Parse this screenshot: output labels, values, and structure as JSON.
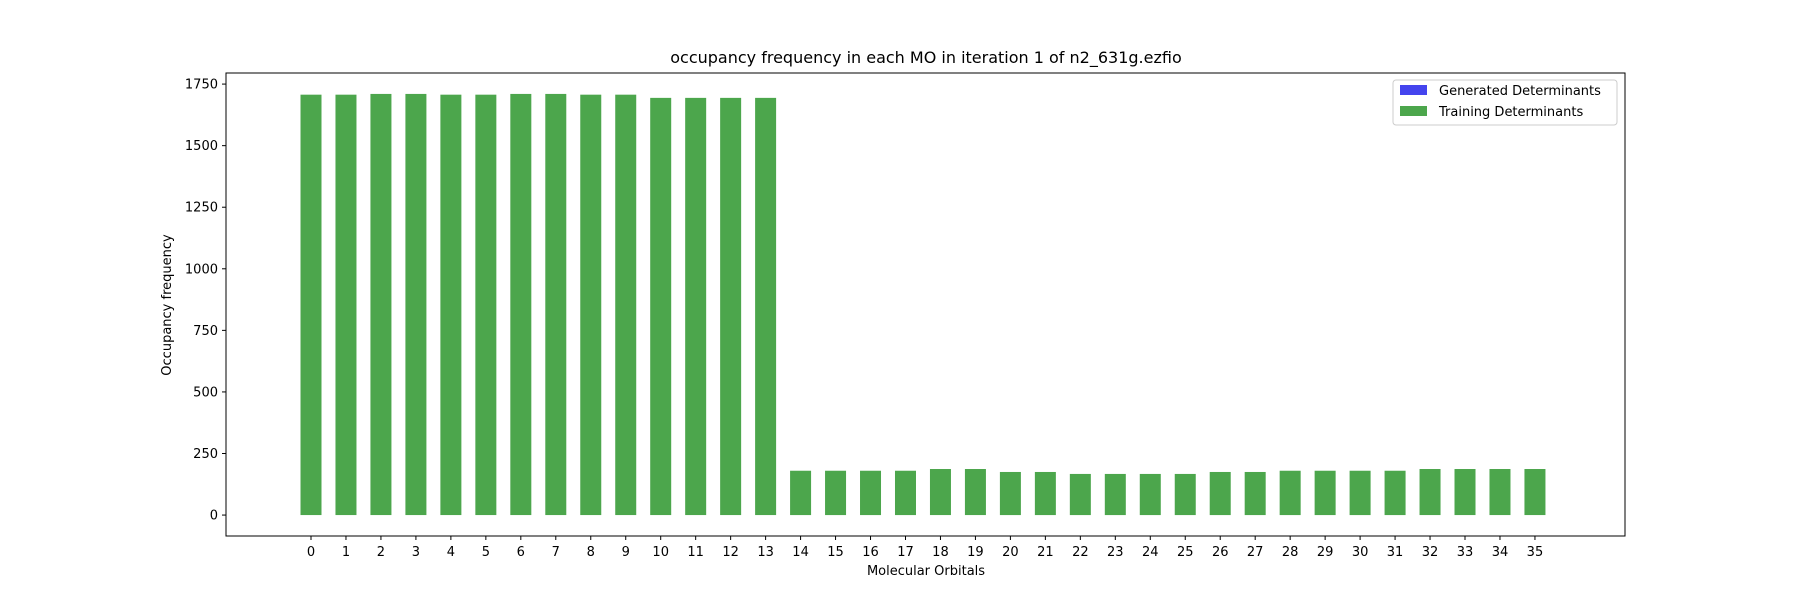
{
  "chart_data": {
    "type": "bar",
    "title": "occupancy frequency in each MO in iteration 1 of n2_631g.ezfio",
    "xlabel": "Molecular Orbitals",
    "ylabel": "Occupancy frequency",
    "categories": [
      "0",
      "1",
      "2",
      "3",
      "4",
      "5",
      "6",
      "7",
      "8",
      "9",
      "10",
      "11",
      "12",
      "13",
      "14",
      "15",
      "16",
      "17",
      "18",
      "19",
      "20",
      "21",
      "22",
      "23",
      "24",
      "25",
      "26",
      "27",
      "28",
      "29",
      "30",
      "31",
      "32",
      "33",
      "34",
      "35"
    ],
    "yticks": [
      "0",
      "250",
      "500",
      "750",
      "1000",
      "1250",
      "1500",
      "1750"
    ],
    "ylim": [
      -85,
      1795
    ],
    "grid": false,
    "legend_position": "top-right",
    "series": [
      {
        "name": "Generated Determinants",
        "color": "#4444ee",
        "values": [
          0,
          0,
          0,
          0,
          0,
          0,
          0,
          0,
          0,
          0,
          0,
          0,
          0,
          0,
          0,
          0,
          0,
          0,
          0,
          0,
          0,
          0,
          0,
          0,
          0,
          0,
          0,
          0,
          0,
          0,
          0,
          0,
          0,
          0,
          0,
          0
        ]
      },
      {
        "name": "Training Determinants",
        "color": "#4ca64c",
        "values": [
          1707,
          1707,
          1710,
          1710,
          1707,
          1707,
          1710,
          1710,
          1707,
          1707,
          1694,
          1694,
          1694,
          1694,
          180,
          180,
          180,
          180,
          187,
          187,
          175,
          175,
          167,
          167,
          167,
          167,
          175,
          175,
          180,
          180,
          180,
          180,
          187,
          187,
          187,
          187
        ]
      }
    ]
  }
}
